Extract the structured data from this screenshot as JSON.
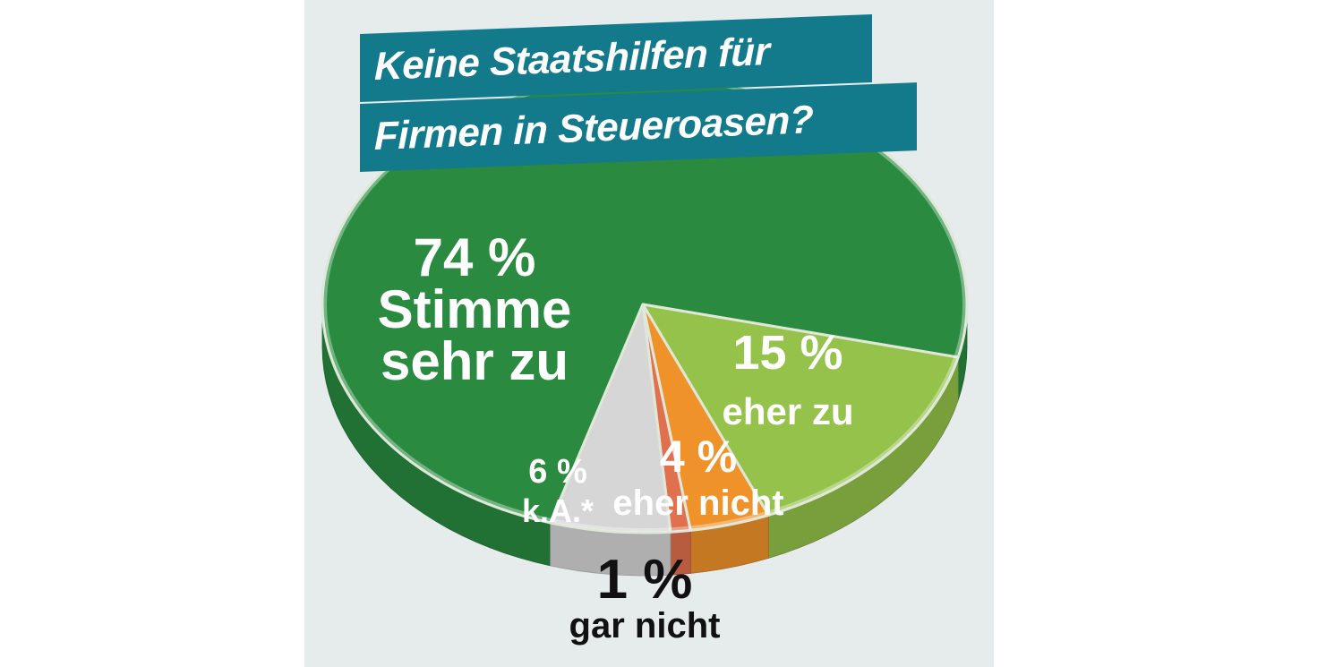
{
  "chart_data": {
    "type": "pie",
    "title_lines": [
      "Keine Staatshilfen für",
      "Firmen in Steueroasen?"
    ],
    "slices": [
      {
        "key": "sehr_zu",
        "value": 74,
        "value_label": "74 %",
        "name_lines": [
          "Stimme",
          "sehr zu"
        ],
        "color": "#2a8a40"
      },
      {
        "key": "eher_zu",
        "value": 15,
        "value_label": "15 %",
        "name_lines": [
          "eher zu"
        ],
        "color": "#94c24a"
      },
      {
        "key": "eher_nicht",
        "value": 4,
        "value_label": "4 %",
        "name_lines": [
          "eher nicht"
        ],
        "color": "#f0922a"
      },
      {
        "key": "gar_nicht",
        "value": 1,
        "value_label": "1 %",
        "name_lines": [
          "gar nicht"
        ],
        "color": "#e0704e"
      },
      {
        "key": "ka",
        "value": 6,
        "value_label": "6 %",
        "name_lines": [
          "k.A.*"
        ],
        "color": "#d6d6d6"
      }
    ]
  },
  "colors": {
    "panel_bg": "#e6ecec",
    "title_band": "#137a8c",
    "label_light": "#ffffff",
    "label_dark": "#111111"
  }
}
